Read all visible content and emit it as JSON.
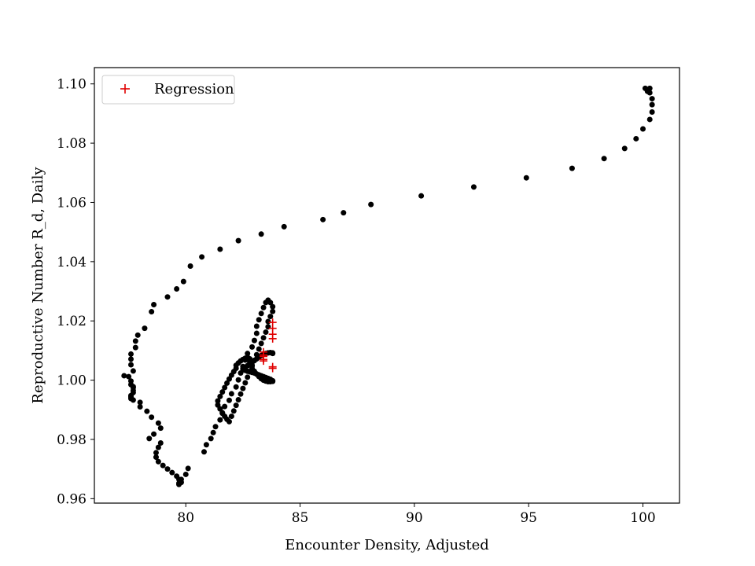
{
  "chart_data": {
    "type": "scatter",
    "title": "",
    "xlabel": "Encounter Density, Adjusted",
    "ylabel": "Reproductive Number R_d, Daily",
    "xlim": [
      76.0,
      101.6
    ],
    "ylim": [
      0.9585,
      1.1055
    ],
    "xticks": [
      80,
      85,
      90,
      95,
      100
    ],
    "yticks": [
      0.96,
      0.98,
      1.0,
      1.02,
      1.04,
      1.06,
      1.08,
      1.1
    ],
    "xtick_labels": [
      "80",
      "85",
      "90",
      "95",
      "100"
    ],
    "ytick_labels": [
      "0.96",
      "0.98",
      "1.00",
      "1.02",
      "1.04",
      "1.06",
      "1.08",
      "1.10"
    ],
    "grid": false,
    "legend": {
      "position": "upper-left",
      "entries": [
        "Regression"
      ]
    },
    "colors": {
      "observed": "#000000",
      "regression": "#e00000"
    },
    "series": [
      {
        "name": "",
        "marker": "dot",
        "color": "#000000",
        "x": [
          100.1,
          100.2,
          100.3,
          100.3,
          100.4,
          100.4,
          100.4,
          100.3,
          100.0,
          99.7,
          99.2,
          98.3,
          96.9,
          94.9,
          92.6,
          90.3,
          88.1,
          86.9,
          86.0,
          84.3,
          83.3,
          82.3,
          81.5,
          80.7,
          80.2,
          79.9,
          79.6,
          79.2,
          78.6,
          78.5,
          78.2,
          77.9,
          77.8,
          77.8,
          77.6,
          77.6,
          77.6,
          77.7,
          77.3,
          77.5,
          77.6,
          77.6,
          77.7,
          77.7,
          77.7,
          77.7,
          77.6,
          77.6,
          77.6,
          77.7,
          78.0,
          78.0,
          78.3,
          78.5,
          78.8,
          78.9,
          78.6,
          78.4,
          78.9,
          78.8,
          78.7,
          78.7,
          78.8,
          79.0,
          79.2,
          79.4,
          79.6,
          79.7,
          79.8,
          79.7,
          79.7,
          79.8,
          80.0,
          80.1,
          80.8,
          80.9,
          81.1,
          81.2,
          81.3,
          81.5,
          81.6,
          81.7,
          81.9,
          82.0,
          82.2,
          82.3,
          82.4,
          82.5,
          82.6,
          82.7,
          82.9,
          83.0,
          83.1,
          83.1,
          83.2,
          83.3,
          83.4,
          83.5,
          83.6,
          83.7,
          83.8,
          83.8,
          83.7,
          83.6,
          83.6,
          83.5,
          83.4,
          83.3,
          83.2,
          83.1,
          83.0,
          82.9,
          82.8,
          82.7,
          82.6,
          82.5,
          82.4,
          82.3,
          82.2,
          82.1,
          82.0,
          81.9,
          81.8,
          81.7,
          81.6,
          81.5,
          81.4,
          81.4,
          81.5,
          81.6,
          81.7,
          81.8,
          81.9,
          82.0,
          82.1,
          82.2,
          82.2,
          82.3,
          82.4,
          82.5,
          82.6,
          82.7,
          82.7,
          82.7,
          82.8,
          82.8,
          82.8,
          82.9,
          82.9,
          83.0,
          83.1,
          83.2,
          83.3,
          83.4,
          83.5,
          83.6,
          83.7,
          83.8,
          83.8,
          83.7,
          83.7,
          83.6,
          83.5,
          83.4,
          83.3,
          83.2,
          83.1,
          83.0,
          82.9,
          82.8,
          82.7,
          82.6,
          82.5,
          82.5,
          82.6,
          82.7,
          82.8,
          82.9,
          83.0,
          83.1,
          83.2,
          83.3,
          83.4,
          83.5,
          83.6,
          83.7,
          83.8,
          83.8
        ],
        "y": [
          1.0985,
          1.0975,
          1.097,
          1.0985,
          1.095,
          1.093,
          1.0905,
          1.088,
          1.0848,
          1.0815,
          1.0782,
          1.0748,
          1.0715,
          1.0683,
          1.0652,
          1.0622,
          1.0593,
          1.0565,
          1.0542,
          1.0518,
          1.0493,
          1.0471,
          1.0442,
          1.0416,
          1.0385,
          1.0333,
          1.0308,
          1.0281,
          1.0255,
          1.0231,
          1.0175,
          1.0152,
          1.0132,
          1.011,
          1.0088,
          1.0071,
          1.0052,
          1.0031,
          1.0015,
          1.0012,
          0.9997,
          0.9985,
          0.9978,
          0.9975,
          0.9965,
          0.9958,
          0.9948,
          0.9943,
          0.9938,
          0.9933,
          0.9925,
          0.991,
          0.9895,
          0.9875,
          0.9855,
          0.9838,
          0.9818,
          0.9803,
          0.9788,
          0.9773,
          0.9755,
          0.974,
          0.9725,
          0.9712,
          0.97,
          0.9688,
          0.9676,
          0.9665,
          0.9655,
          0.9648,
          0.9652,
          0.9665,
          0.9682,
          0.9702,
          0.9758,
          0.9782,
          0.9803,
          0.9823,
          0.9843,
          0.9866,
          0.9888,
          0.9911,
          0.9932,
          0.9954,
          0.9977,
          1.0001,
          1.0024,
          1.0046,
          1.0068,
          1.009,
          1.0112,
          1.0134,
          1.0158,
          1.0182,
          1.0204,
          1.0225,
          1.0245,
          1.0262,
          1.027,
          1.0262,
          1.0248,
          1.0232,
          1.0215,
          1.0198,
          1.018,
          1.0162,
          1.0143,
          1.0124,
          1.0105,
          1.0086,
          1.0067,
          1.0048,
          1.0029,
          1.001,
          0.9991,
          0.9972,
          0.9953,
          0.9934,
          0.9915,
          0.9896,
          0.9878,
          0.986,
          0.9868,
          0.9878,
          0.989,
          0.9903,
          0.9916,
          0.993,
          0.9945,
          0.996,
          0.9975,
          0.999,
          1.0004,
          1.0017,
          1.0029,
          1.004,
          1.005,
          1.0058,
          1.0065,
          1.007,
          1.0074,
          1.0076,
          1.0077,
          1.0076,
          1.0072,
          1.0066,
          1.006,
          1.005,
          1.004,
          1.003,
          1.002,
          1.0012,
          1.0005,
          1.0,
          0.9997,
          0.9995,
          0.9995,
          0.9996,
          0.9998,
          1.0,
          1.0003,
          1.0006,
          1.0009,
          1.0012,
          1.0015,
          1.0018,
          1.0021,
          1.0024,
          1.0026,
          1.0028,
          1.003,
          1.0033,
          1.0037,
          1.004,
          1.0044,
          1.0049,
          1.0054,
          1.006,
          1.0066,
          1.0072,
          1.0078,
          1.0083,
          1.0087,
          1.009,
          1.0092,
          1.0093,
          1.0092,
          1.009
        ]
      },
      {
        "name": "Regression",
        "marker": "plus",
        "color": "#e00000",
        "x": [
          83.8,
          83.8,
          83.8,
          83.8,
          83.4,
          83.4,
          83.4,
          83.4,
          83.4,
          83.8,
          83.8
        ],
        "y": [
          1.0195,
          1.0175,
          1.0155,
          1.014,
          1.0095,
          1.0085,
          1.008,
          1.007,
          1.0065,
          1.0045,
          1.004
        ]
      }
    ]
  }
}
